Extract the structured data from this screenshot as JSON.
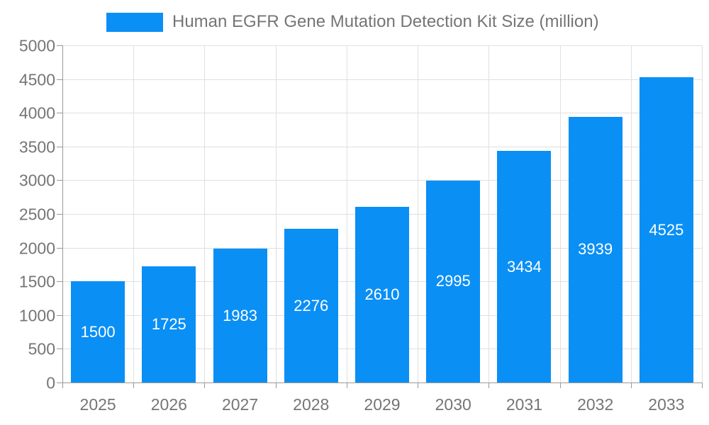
{
  "legend": {
    "label": "Human EGFR Gene Mutation Detection Kit Size (million)"
  },
  "colors": {
    "bar": "#0a8ff5",
    "axis_text": "#757575",
    "grid": "#e0e0e0",
    "axis_line": "#999999",
    "bar_label": "#ffffff",
    "background": "#ffffff"
  },
  "chart_data": {
    "type": "bar",
    "categories": [
      "2025",
      "2026",
      "2027",
      "2028",
      "2029",
      "2030",
      "2031",
      "2032",
      "2033"
    ],
    "values": [
      1500,
      1725,
      1983,
      2276,
      2610,
      2995,
      3434,
      3939,
      4525
    ],
    "title": "Human EGFR Gene Mutation Detection Kit Size (million)",
    "xlabel": "",
    "ylabel": "",
    "ylim": [
      0,
      5000
    ],
    "ytick_step": 500,
    "grid": true,
    "legend_position": "top",
    "bar_label_position": "inside-center",
    "bar_label_color": "#ffffff"
  }
}
